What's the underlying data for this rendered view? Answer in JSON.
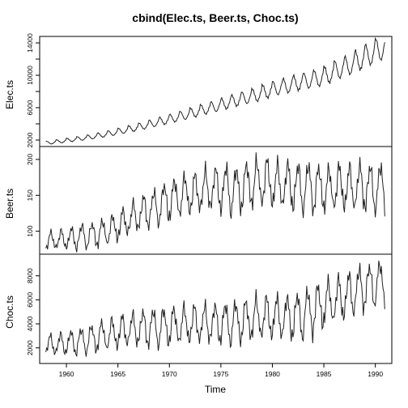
{
  "chart_data": {
    "type": "line",
    "title": "cbind(Elec.ts, Beer.ts, Choc.ts)",
    "xlabel": "Time",
    "xlim": [
      1957.4,
      1991.6
    ],
    "x_start": 1958.0,
    "frequency": 12,
    "x_ticks": [
      1960,
      1965,
      1970,
      1975,
      1980,
      1985,
      1990
    ],
    "x_tick_labels": [
      "1960",
      "1965",
      "1970",
      "1975",
      "1980",
      "1985",
      "1990"
    ],
    "panels": [
      {
        "ylabel": "Elec.ts",
        "ylim": [
          1200,
          14800
        ],
        "y_ticks": [
          2000,
          4000,
          6000,
          8000,
          10000,
          12000,
          14000
        ],
        "y_tick_labels": [
          "2000",
          "",
          "6000",
          "",
          "10000",
          "",
          "14000"
        ],
        "annual_means": [
          1690,
          1850,
          2020,
          2200,
          2390,
          2620,
          2860,
          3140,
          3420,
          3730,
          4060,
          4380,
          4710,
          5040,
          5400,
          5790,
          6130,
          6510,
          6890,
          7210,
          7560,
          8010,
          8430,
          8720,
          9060,
          9340,
          9620,
          10080,
          10720,
          11220,
          11880,
          12560,
          13180
        ],
        "annual_amplitude": [
          0.11,
          0.11,
          0.11,
          0.11,
          0.11,
          0.11,
          0.11,
          0.11,
          0.11,
          0.11,
          0.11,
          0.11,
          0.11,
          0.11,
          0.11,
          0.11,
          0.11,
          0.11,
          0.11,
          0.11,
          0.11,
          0.11,
          0.11,
          0.11,
          0.11,
          0.11,
          0.11,
          0.11,
          0.11,
          0.11,
          0.11,
          0.11,
          0.11
        ]
      },
      {
        "ylabel": "Beer.ts",
        "ylim": [
          68,
          218
        ],
        "y_ticks": [
          100,
          150,
          200
        ],
        "y_tick_labels": [
          "100",
          "150",
          "200"
        ],
        "annual_means": [
          86,
          88,
          90,
          93,
          95,
          98,
          103,
          110,
          118,
          126,
          133,
          140,
          146,
          150,
          152,
          157,
          159,
          160,
          158,
          164,
          167,
          168,
          163,
          164,
          162,
          163,
          160,
          158,
          161,
          160,
          162,
          161,
          162
        ],
        "annual_amplitude": [
          0.14,
          0.14,
          0.15,
          0.16,
          0.16,
          0.17,
          0.17,
          0.17,
          0.17,
          0.17,
          0.16,
          0.17,
          0.17,
          0.17,
          0.17,
          0.17,
          0.17,
          0.18,
          0.18,
          0.18,
          0.18,
          0.18,
          0.18,
          0.18,
          0.18,
          0.18,
          0.18,
          0.18,
          0.18,
          0.18,
          0.18,
          0.18,
          0.18
        ]
      },
      {
        "ylabel": "Choc.ts",
        "ylim": [
          700,
          9800
        ],
        "y_ticks": [
          2000,
          4000,
          6000,
          8000
        ],
        "y_tick_labels": [
          "2000",
          "4000",
          "6000",
          "8000"
        ],
        "annual_means": [
          2200,
          2300,
          2450,
          2600,
          2800,
          3000,
          3150,
          3350,
          3500,
          3650,
          3750,
          3800,
          3850,
          3900,
          3950,
          4000,
          4050,
          4100,
          4200,
          4300,
          4450,
          4500,
          4500,
          4550,
          4700,
          5000,
          5400,
          5700,
          6000,
          6400,
          6900,
          7200,
          7500
        ],
        "annual_amplitude": [
          0.36,
          0.36,
          0.36,
          0.36,
          0.36,
          0.36,
          0.36,
          0.36,
          0.36,
          0.36,
          0.36,
          0.36,
          0.36,
          0.36,
          0.36,
          0.36,
          0.36,
          0.36,
          0.36,
          0.36,
          0.36,
          0.36,
          0.36,
          0.36,
          0.36,
          0.34,
          0.32,
          0.3,
          0.28,
          0.26,
          0.24,
          0.22,
          0.2
        ]
      }
    ],
    "line_color": "#222222"
  }
}
